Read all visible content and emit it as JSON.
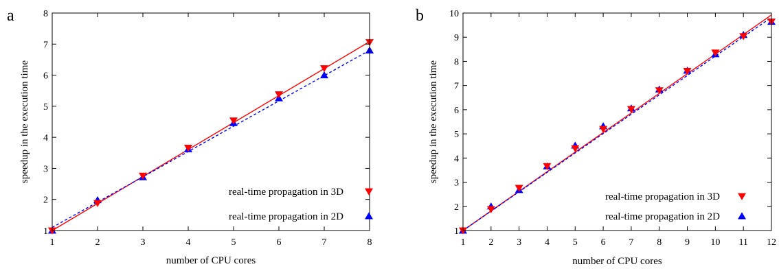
{
  "chart_data": [
    {
      "type": "line",
      "panel_label": "a",
      "xlabel": "number of CPU cores",
      "ylabel": "speedup in the execution time",
      "xlim": [
        1,
        8
      ],
      "ylim": [
        1,
        8
      ],
      "xticks": [
        1,
        2,
        3,
        4,
        5,
        6,
        7,
        8
      ],
      "yticks": [
        1,
        2,
        3,
        4,
        5,
        6,
        7,
        8
      ],
      "grid": false,
      "legend_position": "bottom-right",
      "series": [
        {
          "name": "real-time propagation in 3D",
          "color": "#ff0000",
          "marker": "triangle-down",
          "x": [
            1,
            2,
            3,
            4,
            5,
            6,
            7,
            8
          ],
          "y": [
            1.0,
            1.88,
            2.76,
            3.66,
            4.54,
            5.38,
            6.22,
            7.06
          ],
          "fit": {
            "x": [
              1,
              8
            ],
            "y": [
              1.0,
              7.08
            ],
            "dash": "solid"
          }
        },
        {
          "name": "real-time propagation in 2D",
          "color": "#0000ff",
          "marker": "triangle-up",
          "x": [
            1,
            2,
            3,
            4,
            5,
            6,
            7,
            8
          ],
          "y": [
            1.0,
            1.98,
            2.72,
            3.62,
            4.46,
            5.26,
            6.0,
            6.8
          ],
          "fit": {
            "x": [
              1,
              8
            ],
            "y": [
              1.1,
              6.8
            ],
            "dash": "dashed"
          }
        }
      ]
    },
    {
      "type": "line",
      "panel_label": "b",
      "xlabel": "number of CPU cores",
      "ylabel": "speedup in the execution time",
      "xlim": [
        1,
        12
      ],
      "ylim": [
        1,
        10
      ],
      "xticks": [
        1,
        2,
        3,
        4,
        5,
        6,
        7,
        8,
        9,
        10,
        11,
        12
      ],
      "yticks": [
        1,
        2,
        3,
        4,
        5,
        6,
        7,
        8,
        9,
        10
      ],
      "grid": false,
      "legend_position": "bottom-right",
      "series": [
        {
          "name": "real-time propagation in 3D",
          "color": "#ff0000",
          "marker": "triangle-down",
          "x": [
            1,
            2,
            3,
            4,
            5,
            6,
            7,
            8,
            9,
            10,
            11,
            12
          ],
          "y": [
            1.0,
            1.88,
            2.76,
            3.66,
            4.4,
            5.2,
            6.02,
            6.8,
            7.6,
            8.36,
            9.04,
            9.64
          ],
          "fit": {
            "x": [
              1,
              12
            ],
            "y": [
              1.0,
              9.92
            ],
            "dash": "solid"
          }
        },
        {
          "name": "real-time propagation in 2D",
          "color": "#0000ff",
          "marker": "triangle-up",
          "x": [
            1,
            2,
            3,
            4,
            5,
            6,
            7,
            8,
            9,
            10,
            11,
            12
          ],
          "y": [
            1.0,
            2.0,
            2.68,
            3.66,
            4.52,
            5.32,
            6.06,
            6.84,
            7.62,
            8.3,
            9.1,
            9.64
          ],
          "fit": {
            "x": [
              1,
              12
            ],
            "y": [
              1.0,
              9.82
            ],
            "dash": "dashed"
          }
        }
      ]
    }
  ]
}
